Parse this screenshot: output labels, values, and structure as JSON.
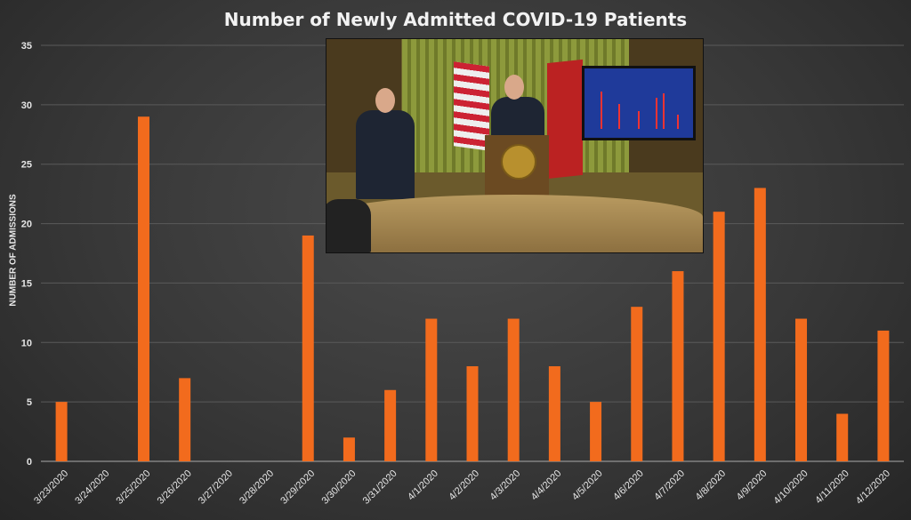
{
  "chart_data": {
    "type": "bar",
    "title": "Number of Newly Admitted COVID-19 Patients",
    "xlabel": "",
    "ylabel": "NUMBER OF ADMISSIONS",
    "ylim": [
      0,
      35
    ],
    "yticks": [
      "0",
      "5",
      "10",
      "15",
      "20",
      "25",
      "30",
      "35"
    ],
    "grid": true,
    "categories": [
      "3/23/2020",
      "3/24/2020",
      "3/25/2020",
      "3/26/2020",
      "3/27/2020",
      "3/28/2020",
      "3/29/2020",
      "3/30/2020",
      "3/31/2020",
      "4/1/2020",
      "4/2/2020",
      "4/3/2020",
      "4/4/2020",
      "4/5/2020",
      "4/6/2020",
      "4/7/2020",
      "4/8/2020",
      "4/9/2020",
      "4/10/2020",
      "4/11/2020",
      "4/12/2020"
    ],
    "values": [
      5,
      0,
      29,
      7,
      0,
      0,
      19,
      2,
      6,
      12,
      8,
      12,
      8,
      5,
      13,
      16,
      21,
      23,
      12,
      4,
      11
    ],
    "bar_color": "#f26b1d"
  }
}
